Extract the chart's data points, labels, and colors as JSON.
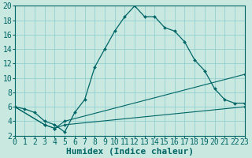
{
  "bg_color": "#c8e8e0",
  "grid_color": "#88cccc",
  "line_color": "#006666",
  "xlabel": "Humidex (Indice chaleur)",
  "xlim": [
    0,
    23
  ],
  "ylim": [
    2,
    20
  ],
  "xticks": [
    0,
    1,
    2,
    3,
    4,
    5,
    6,
    7,
    8,
    9,
    10,
    11,
    12,
    13,
    14,
    15,
    16,
    17,
    18,
    19,
    20,
    21,
    22,
    23
  ],
  "yticks": [
    2,
    4,
    6,
    8,
    10,
    12,
    14,
    16,
    18,
    20
  ],
  "line_main_x": [
    0,
    1,
    2,
    3,
    4,
    5,
    6,
    7,
    8,
    9,
    10,
    11,
    12,
    13,
    14,
    15,
    16,
    17,
    18,
    19,
    20,
    21,
    22,
    23
  ],
  "line_main_y": [
    6.0,
    5.7,
    5.2,
    4.0,
    3.5,
    2.5,
    5.2,
    7.0,
    11.5,
    14.0,
    16.5,
    18.5,
    20.0,
    18.5,
    18.5,
    17.0,
    16.5,
    15.0,
    12.5,
    11.0,
    8.5,
    7.0,
    6.5,
    6.5
  ],
  "line_bot_x": [
    0,
    3,
    4,
    5,
    23
  ],
  "line_bot_y": [
    6.0,
    3.5,
    3.0,
    3.5,
    6.0
  ],
  "line_mid_x": [
    0,
    3,
    4,
    5,
    23
  ],
  "line_mid_y": [
    6.0,
    3.5,
    3.0,
    4.0,
    10.5
  ],
  "font_size_label": 8,
  "font_size_tick": 7
}
